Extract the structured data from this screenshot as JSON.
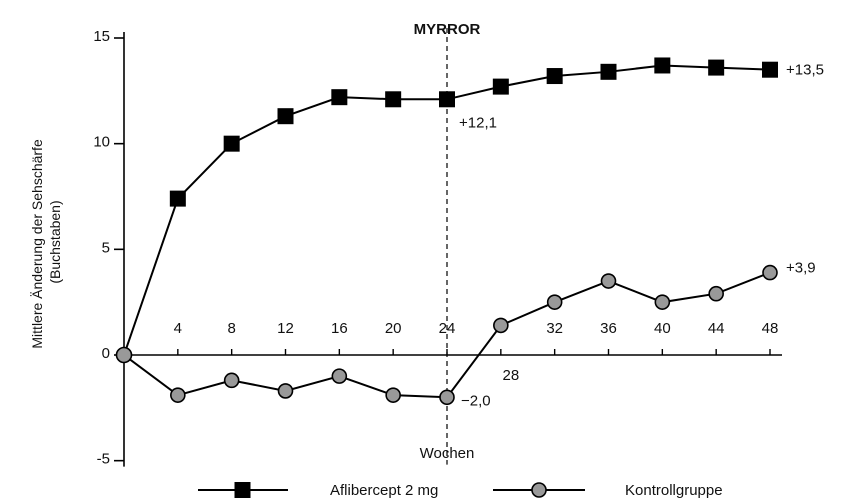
{
  "chart_data": {
    "type": "line",
    "title": "MYRROR",
    "ylabel_line1": "Mittlere Änderung der Sehschärfe",
    "ylabel_line2": "(Buchstaben)",
    "xlabel": "Wochen",
    "ylim": [
      -5,
      15
    ],
    "y_ticks": [
      "15",
      "10",
      "5",
      "0",
      "-5"
    ],
    "y_tick_values": [
      15,
      10,
      5,
      0,
      -5
    ],
    "xlim": [
      0,
      48
    ],
    "x_ticks_upper": [
      "4",
      "8",
      "12",
      "16",
      "20",
      "24",
      "32",
      "36",
      "40",
      "44",
      "48"
    ],
    "x_ticks_upper_values": [
      4,
      8,
      12,
      16,
      20,
      24,
      32,
      36,
      40,
      44,
      48
    ],
    "x_tick_lower": "28",
    "x_tick_lower_value": 28,
    "marker_line_x": 24,
    "grid": false,
    "legend_position": "bottom",
    "x": [
      0,
      4,
      8,
      12,
      16,
      20,
      24,
      28,
      32,
      36,
      40,
      44,
      48
    ],
    "series": [
      {
        "name": "Aflibercept 2 mg",
        "marker": "square",
        "marker_color": "#000000",
        "values": [
          0,
          7.4,
          10.0,
          11.3,
          12.2,
          12.1,
          12.1,
          12.7,
          13.2,
          13.4,
          13.7,
          13.6,
          13.5
        ]
      },
      {
        "name": "Kontrollgruppe",
        "marker": "circle",
        "marker_color": "#999999",
        "values": [
          0,
          -1.9,
          -1.2,
          -1.7,
          -1.0,
          -1.9,
          -2.0,
          1.4,
          2.5,
          3.5,
          2.5,
          2.9,
          3.9
        ]
      }
    ],
    "annotations": [
      {
        "text": "+13,5",
        "series": 0,
        "index": 12
      },
      {
        "text": "+12,1",
        "series": 0,
        "index": 6
      },
      {
        "text": "+3,9",
        "series": 1,
        "index": 12
      },
      {
        "text": "−2,0",
        "series": 1,
        "index": 6
      }
    ]
  }
}
